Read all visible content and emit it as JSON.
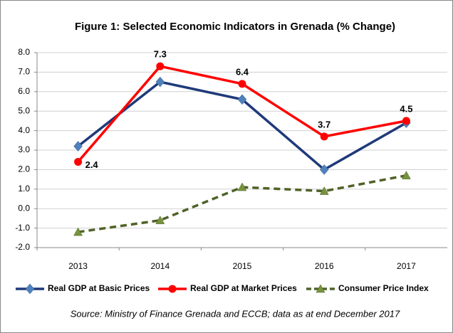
{
  "chart_data": {
    "type": "line",
    "title": "Figure 1: Selected Economic Indicators in Grenada (% Change)",
    "categories": [
      "2013",
      "2014",
      "2015",
      "2016",
      "2017"
    ],
    "series": [
      {
        "name": "Real GDP at Basic Prices",
        "color": "#1f3a7a",
        "marker": "diamond",
        "marker_color": "#4f81bd",
        "dash": false,
        "data_labels": false,
        "values": [
          3.2,
          6.5,
          5.6,
          2.0,
          4.4
        ]
      },
      {
        "name": "Real GDP at Market Prices",
        "color": "#ff0000",
        "marker": "circle",
        "marker_color": "#ff0000",
        "dash": false,
        "data_labels": true,
        "values": [
          2.4,
          7.3,
          6.4,
          3.7,
          4.5
        ]
      },
      {
        "name": "Consumer Price Index",
        "color": "#4f6228",
        "marker": "triangle",
        "marker_color": "#77933c",
        "dash": true,
        "data_labels": false,
        "values": [
          -1.2,
          -0.6,
          1.1,
          0.9,
          1.7
        ]
      }
    ],
    "ylim": [
      -2,
      8
    ],
    "yticks": [
      {
        "value": -2,
        "label": "-2.0"
      },
      {
        "value": -1,
        "label": "-1.0"
      },
      {
        "value": 0,
        "label": "0.0"
      },
      {
        "value": 1,
        "label": "1.0"
      },
      {
        "value": 2,
        "label": "2.0"
      },
      {
        "value": 3,
        "label": "3.0"
      },
      {
        "value": 4,
        "label": "4.0"
      },
      {
        "value": 5,
        "label": "5.0"
      },
      {
        "value": 6,
        "label": "6.0"
      },
      {
        "value": 7,
        "label": "7.0"
      },
      {
        "value": 8,
        "label": "8.0"
      }
    ],
    "grid": true,
    "legend": "bottom",
    "source": "Source: Ministry of Finance Grenada and ECCB; data as at end December 2017"
  }
}
